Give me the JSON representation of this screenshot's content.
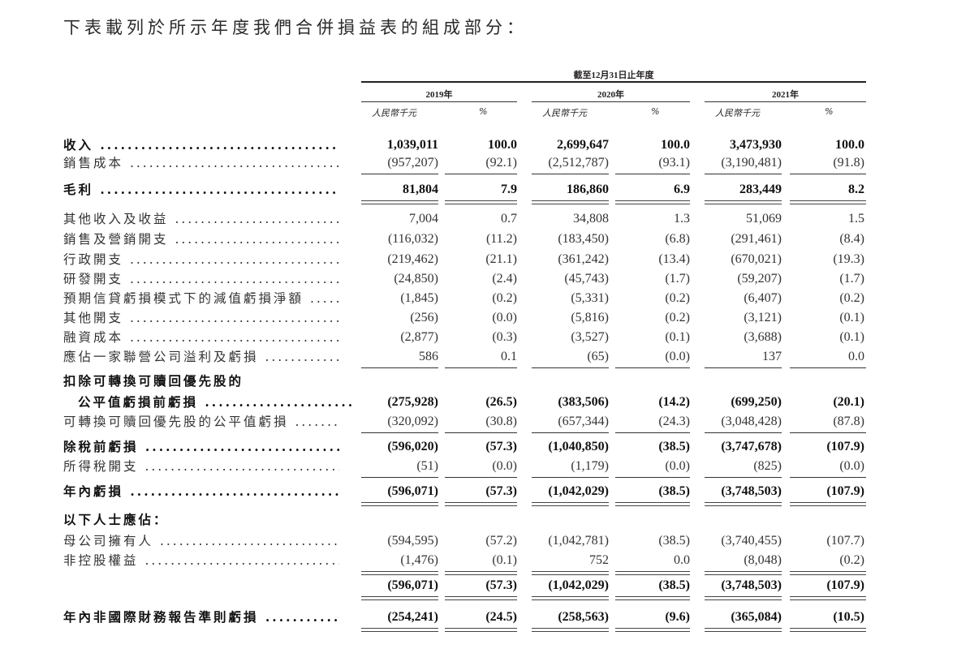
{
  "title": "下表載列於所示年度我們合併損益表的組成部分：",
  "header": {
    "period": "截至12月31日止年度",
    "years": [
      "2019年",
      "2020年",
      "2021年"
    ],
    "amount_unit": "人民幣千元",
    "pct_unit": "%"
  },
  "rows": [
    {
      "label": "收入",
      "bold": true,
      "values": [
        "1,039,011",
        "100.0",
        "2,699,647",
        "100.0",
        "3,473,930",
        "100.0"
      ]
    },
    {
      "label": "銷售成本",
      "bold": false,
      "values": [
        "(957,207)",
        "(92.1)",
        "(2,512,787)",
        "(93.1)",
        "(3,190,481)",
        "(91.8)"
      ]
    },
    {
      "label": "毛利",
      "bold": true,
      "values": [
        "81,804",
        "7.9",
        "186,860",
        "6.9",
        "283,449",
        "8.2"
      ]
    },
    {
      "label": "其他收入及收益",
      "bold": false,
      "values": [
        "7,004",
        "0.7",
        "34,808",
        "1.3",
        "51,069",
        "1.5"
      ]
    },
    {
      "label": "銷售及營銷開支",
      "bold": false,
      "values": [
        "(116,032)",
        "(11.2)",
        "(183,450)",
        "(6.8)",
        "(291,461)",
        "(8.4)"
      ]
    },
    {
      "label": "行政開支",
      "bold": false,
      "values": [
        "(219,462)",
        "(21.1)",
        "(361,242)",
        "(13.4)",
        "(670,021)",
        "(19.3)"
      ]
    },
    {
      "label": "研發開支",
      "bold": false,
      "values": [
        "(24,850)",
        "(2.4)",
        "(45,743)",
        "(1.7)",
        "(59,207)",
        "(1.7)"
      ]
    },
    {
      "label": "預期信貸虧損模式下的減值虧損淨額",
      "bold": false,
      "values": [
        "(1,845)",
        "(0.2)",
        "(5,331)",
        "(0.2)",
        "(6,407)",
        "(0.2)"
      ]
    },
    {
      "label": "其他開支",
      "bold": false,
      "values": [
        "(256)",
        "(0.0)",
        "(5,816)",
        "(0.2)",
        "(3,121)",
        "(0.1)"
      ]
    },
    {
      "label": "融資成本",
      "bold": false,
      "values": [
        "(2,877)",
        "(0.3)",
        "(3,527)",
        "(0.1)",
        "(3,688)",
        "(0.1)"
      ]
    },
    {
      "label": "應佔一家聯營公司溢利及虧損",
      "bold": false,
      "values": [
        "586",
        "0.1",
        "(65)",
        "(0.0)",
        "137",
        "0.0"
      ]
    },
    {
      "label": "扣除可轉換可贖回優先股的",
      "bold": true,
      "values": []
    },
    {
      "label": "公平值虧損前虧損",
      "bold": true,
      "indent": true,
      "values": [
        "(275,928)",
        "(26.5)",
        "(383,506)",
        "(14.2)",
        "(699,250)",
        "(20.1)"
      ]
    },
    {
      "label": "可轉換可贖回優先股的公平值虧損",
      "bold": false,
      "values": [
        "(320,092)",
        "(30.8)",
        "(657,344)",
        "(24.3)",
        "(3,048,428)",
        "(87.8)"
      ]
    },
    {
      "label": "除稅前虧損",
      "bold": true,
      "values": [
        "(596,020)",
        "(57.3)",
        "(1,040,850)",
        "(38.5)",
        "(3,747,678)",
        "(107.9)"
      ]
    },
    {
      "label": "所得稅開支",
      "bold": false,
      "values": [
        "(51)",
        "(0.0)",
        "(1,179)",
        "(0.0)",
        "(825)",
        "(0.0)"
      ]
    },
    {
      "label": "年內虧損",
      "bold": true,
      "values": [
        "(596,071)",
        "(57.3)",
        "(1,042,029)",
        "(38.5)",
        "(3,748,503)",
        "(107.9)"
      ]
    },
    {
      "label": "以下人士應佔：",
      "bold": true,
      "values": []
    },
    {
      "label": "母公司擁有人",
      "bold": false,
      "values": [
        "(594,595)",
        "(57.2)",
        "(1,042,781)",
        "(38.5)",
        "(3,740,455)",
        "(107.7)"
      ]
    },
    {
      "label": "非控股權益",
      "bold": false,
      "values": [
        "(1,476)",
        "(0.1)",
        "752",
        "0.0",
        "(8,048)",
        "(0.2)"
      ]
    },
    {
      "label": "",
      "bold": true,
      "values": [
        "(596,071)",
        "(57.3)",
        "(1,042,029)",
        "(38.5)",
        "(3,748,503)",
        "(107.9)"
      ]
    },
    {
      "label": "年內非國際財務報告準則虧損",
      "bold": true,
      "values": [
        "(254,241)",
        "(24.5)",
        "(258,563)",
        "(9.6)",
        "(365,084)",
        "(10.5)"
      ]
    }
  ]
}
